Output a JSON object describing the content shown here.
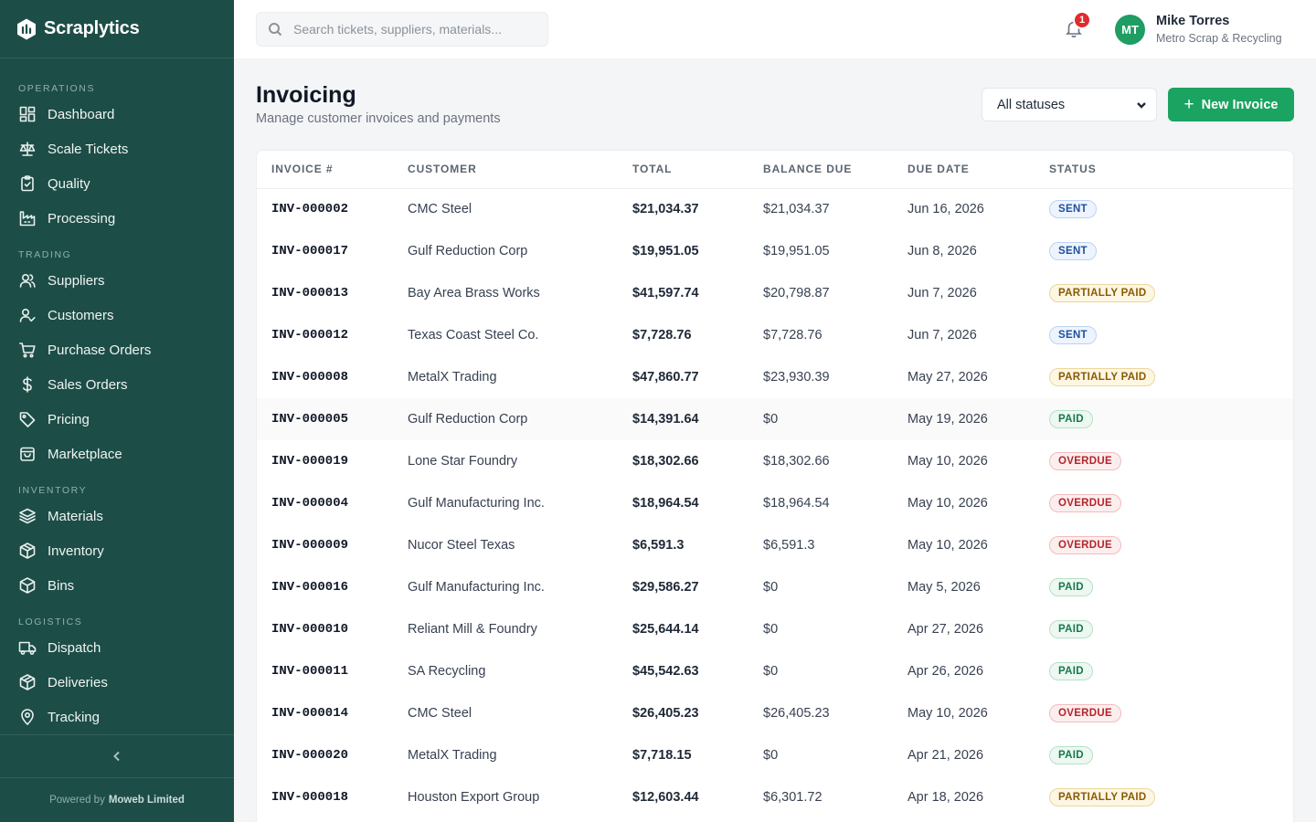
{
  "brand": {
    "name": "Scraplytics"
  },
  "sidebar": {
    "sections": [
      {
        "label": "OPERATIONS",
        "items": [
          {
            "label": "Dashboard",
            "icon": "dashboard-icon"
          },
          {
            "label": "Scale Tickets",
            "icon": "scale-icon"
          },
          {
            "label": "Quality",
            "icon": "clipboard-icon"
          },
          {
            "label": "Processing",
            "icon": "factory-icon"
          }
        ]
      },
      {
        "label": "TRADING",
        "items": [
          {
            "label": "Suppliers",
            "icon": "users-icon"
          },
          {
            "label": "Customers",
            "icon": "user-check-icon"
          },
          {
            "label": "Purchase Orders",
            "icon": "cart-icon"
          },
          {
            "label": "Sales Orders",
            "icon": "dollar-icon"
          },
          {
            "label": "Pricing",
            "icon": "tag-icon"
          },
          {
            "label": "Marketplace",
            "icon": "store-icon"
          }
        ]
      },
      {
        "label": "INVENTORY",
        "items": [
          {
            "label": "Materials",
            "icon": "layers-icon"
          },
          {
            "label": "Inventory",
            "icon": "package-icon"
          },
          {
            "label": "Bins",
            "icon": "box-icon"
          }
        ]
      },
      {
        "label": "LOGISTICS",
        "items": [
          {
            "label": "Dispatch",
            "icon": "truck-icon"
          },
          {
            "label": "Deliveries",
            "icon": "package-open-icon"
          },
          {
            "label": "Tracking",
            "icon": "map-pin-icon"
          }
        ]
      }
    ],
    "footer": {
      "powered_prefix": "Powered by",
      "powered_company": "Moweb Limited"
    }
  },
  "topbar": {
    "search_placeholder": "Search tickets, suppliers, materials...",
    "notification_count": "1",
    "user": {
      "initials": "MT",
      "name": "Mike Torres",
      "org": "Metro Scrap & Recycling"
    }
  },
  "page": {
    "title": "Invoicing",
    "subtitle": "Manage customer invoices and payments",
    "status_filter": "All statuses",
    "new_button": "New Invoice"
  },
  "table": {
    "columns": [
      "INVOICE #",
      "CUSTOMER",
      "TOTAL",
      "BALANCE DUE",
      "DUE DATE",
      "STATUS"
    ],
    "rows": [
      {
        "invoice": "INV-000002",
        "customer": "CMC Steel",
        "total": "$21,034.37",
        "balance": "$21,034.37",
        "due": "Jun 16, 2026",
        "status": "SENT"
      },
      {
        "invoice": "INV-000017",
        "customer": "Gulf Reduction Corp",
        "total": "$19,951.05",
        "balance": "$19,951.05",
        "due": "Jun 8, 2026",
        "status": "SENT"
      },
      {
        "invoice": "INV-000013",
        "customer": "Bay Area Brass Works",
        "total": "$41,597.74",
        "balance": "$20,798.87",
        "due": "Jun 7, 2026",
        "status": "PARTIALLY PAID"
      },
      {
        "invoice": "INV-000012",
        "customer": "Texas Coast Steel Co.",
        "total": "$7,728.76",
        "balance": "$7,728.76",
        "due": "Jun 7, 2026",
        "status": "SENT"
      },
      {
        "invoice": "INV-000008",
        "customer": "MetalX Trading",
        "total": "$47,860.77",
        "balance": "$23,930.39",
        "due": "May 27, 2026",
        "status": "PARTIALLY PAID"
      },
      {
        "invoice": "INV-000005",
        "customer": "Gulf Reduction Corp",
        "total": "$14,391.64",
        "balance": "$0",
        "due": "May 19, 2026",
        "status": "PAID"
      },
      {
        "invoice": "INV-000019",
        "customer": "Lone Star Foundry",
        "total": "$18,302.66",
        "balance": "$18,302.66",
        "due": "May 10, 2026",
        "status": "OVERDUE"
      },
      {
        "invoice": "INV-000004",
        "customer": "Gulf Manufacturing Inc.",
        "total": "$18,964.54",
        "balance": "$18,964.54",
        "due": "May 10, 2026",
        "status": "OVERDUE"
      },
      {
        "invoice": "INV-000009",
        "customer": "Nucor Steel Texas",
        "total": "$6,591.3",
        "balance": "$6,591.3",
        "due": "May 10, 2026",
        "status": "OVERDUE"
      },
      {
        "invoice": "INV-000016",
        "customer": "Gulf Manufacturing Inc.",
        "total": "$29,586.27",
        "balance": "$0",
        "due": "May 5, 2026",
        "status": "PAID"
      },
      {
        "invoice": "INV-000010",
        "customer": "Reliant Mill & Foundry",
        "total": "$25,644.14",
        "balance": "$0",
        "due": "Apr 27, 2026",
        "status": "PAID"
      },
      {
        "invoice": "INV-000011",
        "customer": "SA Recycling",
        "total": "$45,542.63",
        "balance": "$0",
        "due": "Apr 26, 2026",
        "status": "PAID"
      },
      {
        "invoice": "INV-000014",
        "customer": "CMC Steel",
        "total": "$26,405.23",
        "balance": "$26,405.23",
        "due": "May 10, 2026",
        "status": "OVERDUE"
      },
      {
        "invoice": "INV-000020",
        "customer": "MetalX Trading",
        "total": "$7,718.15",
        "balance": "$0",
        "due": "Apr 21, 2026",
        "status": "PAID"
      },
      {
        "invoice": "INV-000018",
        "customer": "Houston Export Group",
        "total": "$12,603.44",
        "balance": "$6,301.72",
        "due": "Apr 18, 2026",
        "status": "PARTIALLY PAID"
      }
    ]
  },
  "colors": {
    "sidebar": "#1d4d47",
    "accent": "#1aa361",
    "badge_alert": "#e02b2b"
  }
}
